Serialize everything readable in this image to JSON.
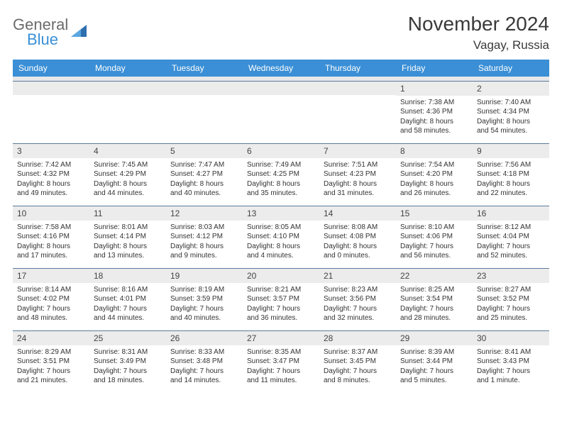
{
  "brand": {
    "general": "General",
    "blue": "Blue",
    "accent_color": "#3a8fd6",
    "text_color": "#6b6b6b"
  },
  "header": {
    "month_title": "November 2024",
    "location": "Vagay, Russia"
  },
  "weekdays": [
    "Sunday",
    "Monday",
    "Tuesday",
    "Wednesday",
    "Thursday",
    "Friday",
    "Saturday"
  ],
  "colors": {
    "header_bg": "#3a8fd6",
    "header_fg": "#ffffff",
    "daynum_bg": "#ececec",
    "border": "#5a7a9a",
    "page_bg": "#ffffff"
  },
  "weeks": [
    [
      null,
      null,
      null,
      null,
      null,
      {
        "n": "1",
        "sunrise": "Sunrise: 7:38 AM",
        "sunset": "Sunset: 4:36 PM",
        "day1": "Daylight: 8 hours",
        "day2": "and 58 minutes."
      },
      {
        "n": "2",
        "sunrise": "Sunrise: 7:40 AM",
        "sunset": "Sunset: 4:34 PM",
        "day1": "Daylight: 8 hours",
        "day2": "and 54 minutes."
      }
    ],
    [
      {
        "n": "3",
        "sunrise": "Sunrise: 7:42 AM",
        "sunset": "Sunset: 4:32 PM",
        "day1": "Daylight: 8 hours",
        "day2": "and 49 minutes."
      },
      {
        "n": "4",
        "sunrise": "Sunrise: 7:45 AM",
        "sunset": "Sunset: 4:29 PM",
        "day1": "Daylight: 8 hours",
        "day2": "and 44 minutes."
      },
      {
        "n": "5",
        "sunrise": "Sunrise: 7:47 AM",
        "sunset": "Sunset: 4:27 PM",
        "day1": "Daylight: 8 hours",
        "day2": "and 40 minutes."
      },
      {
        "n": "6",
        "sunrise": "Sunrise: 7:49 AM",
        "sunset": "Sunset: 4:25 PM",
        "day1": "Daylight: 8 hours",
        "day2": "and 35 minutes."
      },
      {
        "n": "7",
        "sunrise": "Sunrise: 7:51 AM",
        "sunset": "Sunset: 4:23 PM",
        "day1": "Daylight: 8 hours",
        "day2": "and 31 minutes."
      },
      {
        "n": "8",
        "sunrise": "Sunrise: 7:54 AM",
        "sunset": "Sunset: 4:20 PM",
        "day1": "Daylight: 8 hours",
        "day2": "and 26 minutes."
      },
      {
        "n": "9",
        "sunrise": "Sunrise: 7:56 AM",
        "sunset": "Sunset: 4:18 PM",
        "day1": "Daylight: 8 hours",
        "day2": "and 22 minutes."
      }
    ],
    [
      {
        "n": "10",
        "sunrise": "Sunrise: 7:58 AM",
        "sunset": "Sunset: 4:16 PM",
        "day1": "Daylight: 8 hours",
        "day2": "and 17 minutes."
      },
      {
        "n": "11",
        "sunrise": "Sunrise: 8:01 AM",
        "sunset": "Sunset: 4:14 PM",
        "day1": "Daylight: 8 hours",
        "day2": "and 13 minutes."
      },
      {
        "n": "12",
        "sunrise": "Sunrise: 8:03 AM",
        "sunset": "Sunset: 4:12 PM",
        "day1": "Daylight: 8 hours",
        "day2": "and 9 minutes."
      },
      {
        "n": "13",
        "sunrise": "Sunrise: 8:05 AM",
        "sunset": "Sunset: 4:10 PM",
        "day1": "Daylight: 8 hours",
        "day2": "and 4 minutes."
      },
      {
        "n": "14",
        "sunrise": "Sunrise: 8:08 AM",
        "sunset": "Sunset: 4:08 PM",
        "day1": "Daylight: 8 hours",
        "day2": "and 0 minutes."
      },
      {
        "n": "15",
        "sunrise": "Sunrise: 8:10 AM",
        "sunset": "Sunset: 4:06 PM",
        "day1": "Daylight: 7 hours",
        "day2": "and 56 minutes."
      },
      {
        "n": "16",
        "sunrise": "Sunrise: 8:12 AM",
        "sunset": "Sunset: 4:04 PM",
        "day1": "Daylight: 7 hours",
        "day2": "and 52 minutes."
      }
    ],
    [
      {
        "n": "17",
        "sunrise": "Sunrise: 8:14 AM",
        "sunset": "Sunset: 4:02 PM",
        "day1": "Daylight: 7 hours",
        "day2": "and 48 minutes."
      },
      {
        "n": "18",
        "sunrise": "Sunrise: 8:16 AM",
        "sunset": "Sunset: 4:01 PM",
        "day1": "Daylight: 7 hours",
        "day2": "and 44 minutes."
      },
      {
        "n": "19",
        "sunrise": "Sunrise: 8:19 AM",
        "sunset": "Sunset: 3:59 PM",
        "day1": "Daylight: 7 hours",
        "day2": "and 40 minutes."
      },
      {
        "n": "20",
        "sunrise": "Sunrise: 8:21 AM",
        "sunset": "Sunset: 3:57 PM",
        "day1": "Daylight: 7 hours",
        "day2": "and 36 minutes."
      },
      {
        "n": "21",
        "sunrise": "Sunrise: 8:23 AM",
        "sunset": "Sunset: 3:56 PM",
        "day1": "Daylight: 7 hours",
        "day2": "and 32 minutes."
      },
      {
        "n": "22",
        "sunrise": "Sunrise: 8:25 AM",
        "sunset": "Sunset: 3:54 PM",
        "day1": "Daylight: 7 hours",
        "day2": "and 28 minutes."
      },
      {
        "n": "23",
        "sunrise": "Sunrise: 8:27 AM",
        "sunset": "Sunset: 3:52 PM",
        "day1": "Daylight: 7 hours",
        "day2": "and 25 minutes."
      }
    ],
    [
      {
        "n": "24",
        "sunrise": "Sunrise: 8:29 AM",
        "sunset": "Sunset: 3:51 PM",
        "day1": "Daylight: 7 hours",
        "day2": "and 21 minutes."
      },
      {
        "n": "25",
        "sunrise": "Sunrise: 8:31 AM",
        "sunset": "Sunset: 3:49 PM",
        "day1": "Daylight: 7 hours",
        "day2": "and 18 minutes."
      },
      {
        "n": "26",
        "sunrise": "Sunrise: 8:33 AM",
        "sunset": "Sunset: 3:48 PM",
        "day1": "Daylight: 7 hours",
        "day2": "and 14 minutes."
      },
      {
        "n": "27",
        "sunrise": "Sunrise: 8:35 AM",
        "sunset": "Sunset: 3:47 PM",
        "day1": "Daylight: 7 hours",
        "day2": "and 11 minutes."
      },
      {
        "n": "28",
        "sunrise": "Sunrise: 8:37 AM",
        "sunset": "Sunset: 3:45 PM",
        "day1": "Daylight: 7 hours",
        "day2": "and 8 minutes."
      },
      {
        "n": "29",
        "sunrise": "Sunrise: 8:39 AM",
        "sunset": "Sunset: 3:44 PM",
        "day1": "Daylight: 7 hours",
        "day2": "and 5 minutes."
      },
      {
        "n": "30",
        "sunrise": "Sunrise: 8:41 AM",
        "sunset": "Sunset: 3:43 PM",
        "day1": "Daylight: 7 hours",
        "day2": "and 1 minute."
      }
    ]
  ]
}
